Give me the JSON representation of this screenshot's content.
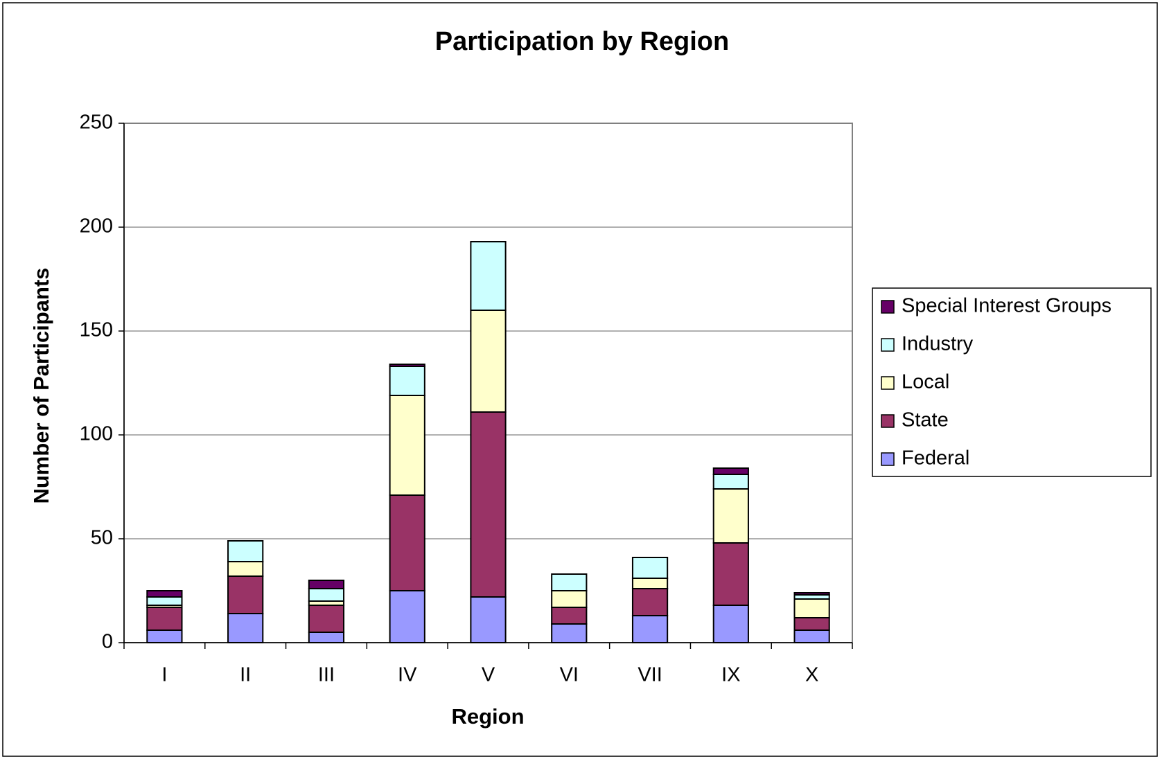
{
  "chart_data": {
    "type": "stacked_bar",
    "title": "Participation by Region",
    "x_label": "Region",
    "y_label": "Number of Participants",
    "categories": [
      "I",
      "II",
      "III",
      "IV",
      "V",
      "VI",
      "VII",
      "IX",
      "X"
    ],
    "series": [
      {
        "name": "Federal",
        "color": "#9999ff",
        "values": [
          6,
          14,
          5,
          25,
          22,
          9,
          13,
          18,
          6
        ]
      },
      {
        "name": "State",
        "color": "#993366",
        "values": [
          11,
          18,
          13,
          46,
          89,
          8,
          13,
          30,
          6
        ]
      },
      {
        "name": "Local",
        "color": "#ffffcc",
        "values": [
          1,
          7,
          2,
          48,
          49,
          8,
          5,
          26,
          9
        ]
      },
      {
        "name": "Industry",
        "color": "#ccffff",
        "values": [
          4,
          10,
          6,
          14,
          33,
          8,
          10,
          7,
          2
        ]
      },
      {
        "name": "Special Interest Groups",
        "color": "#660066",
        "values": [
          3,
          0,
          4,
          1,
          0,
          0,
          0,
          3,
          1
        ]
      }
    ],
    "ylim": [
      0,
      250
    ],
    "yticks": [
      0,
      50,
      100,
      150,
      200,
      250
    ],
    "grid": true,
    "legend": "right"
  }
}
